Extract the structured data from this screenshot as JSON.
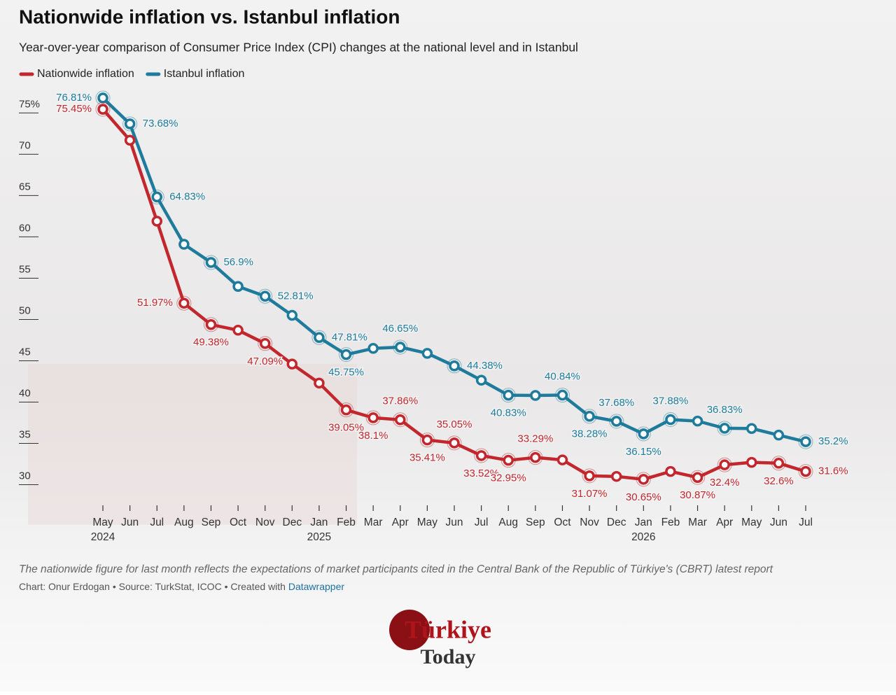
{
  "chart_data": {
    "type": "line",
    "title": "Nationwide inflation vs. Istanbul inflation",
    "subtitle": "Year-over-year comparison of Consumer Price Index (CPI) changes at the national level and in Istanbul",
    "categories": [
      "May",
      "Jun",
      "Jul",
      "Aug",
      "Sep",
      "Oct",
      "Nov",
      "Dec",
      "Jan",
      "Feb",
      "Mar",
      "Apr",
      "May",
      "Jun",
      "Jul",
      "Aug",
      "Sep",
      "Oct",
      "Nov",
      "Dec",
      "Jan",
      "Feb",
      "Mar",
      "Apr",
      "May",
      "Jun",
      "Jul"
    ],
    "category_years": [
      "2024",
      null,
      null,
      null,
      null,
      null,
      null,
      null,
      "2025",
      null,
      null,
      null,
      null,
      null,
      null,
      null,
      null,
      null,
      null,
      null,
      "2026",
      null,
      null,
      null,
      null,
      null,
      null
    ],
    "series": [
      {
        "name": "Nationwide inflation",
        "color": "#c1272d",
        "values": [
          75.45,
          71.7,
          61.9,
          51.97,
          49.38,
          48.7,
          47.09,
          44.6,
          42.3,
          39.05,
          38.1,
          37.86,
          35.41,
          35.05,
          33.52,
          32.95,
          33.29,
          33.0,
          31.07,
          31.0,
          30.65,
          31.6,
          30.87,
          32.4,
          32.7,
          32.6,
          31.6
        ],
        "value_labels": [
          "75.45%",
          null,
          null,
          "51.97%",
          "49.38%",
          null,
          "47.09%",
          null,
          null,
          "39.05%",
          "38.1%",
          "37.86%",
          "35.41%",
          "35.05%",
          "33.52%",
          "32.95%",
          "33.29%",
          null,
          "31.07%",
          null,
          "30.65%",
          null,
          "30.87%",
          "32.4%",
          null,
          "32.6%",
          "31.6%"
        ]
      },
      {
        "name": "Istanbul inflation",
        "color": "#1e7b9c",
        "values": [
          76.81,
          73.68,
          64.83,
          59.1,
          56.9,
          54.0,
          52.81,
          50.5,
          47.81,
          45.75,
          46.5,
          46.65,
          45.9,
          44.38,
          42.65,
          40.83,
          40.8,
          40.84,
          38.28,
          37.68,
          36.15,
          37.88,
          37.7,
          36.83,
          36.8,
          36.0,
          35.2
        ],
        "value_labels": [
          "76.81%",
          "73.68%",
          "64.83%",
          null,
          "56.9%",
          null,
          "52.81%",
          null,
          "47.81%",
          "45.75%",
          null,
          "46.65%",
          null,
          "44.38%",
          null,
          "40.83%",
          null,
          "40.84%",
          "38.28%",
          "37.68%",
          "36.15%",
          "37.88%",
          null,
          "36.83%",
          null,
          null,
          "35.2%"
        ]
      }
    ],
    "ylim": [
      27.5,
      78
    ],
    "yticks": [
      30,
      35,
      40,
      45,
      50,
      55,
      60,
      65,
      70,
      {
        "value": 75,
        "label": "75%"
      }
    ],
    "note": "The nationwide figure for last month reflects the expectations of market participants cited in the Central Bank of the Republic of Türkiye's (CBRT) latest report",
    "credit": "Chart: Onur Erdogan • Source: TurkStat, ICOC • Created with",
    "credit_link": "Datawrapper",
    "logo_top": "Türkiye",
    "logo_bottom": "Today"
  }
}
